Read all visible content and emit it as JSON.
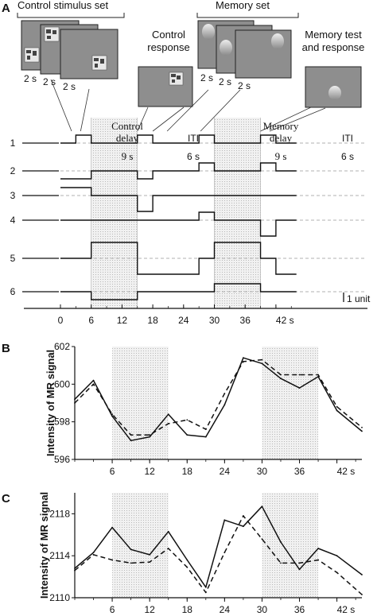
{
  "panel_labels": {
    "a": "A",
    "b": "B",
    "c": "C"
  },
  "panel_a": {
    "control_set_label": "Control stimulus set",
    "memory_set_label": "Memory set",
    "control_response_label": [
      "Control",
      "response"
    ],
    "memory_test_label": [
      "Memory test",
      "and response"
    ],
    "stim_durations": [
      "2 s",
      "2 s",
      "2 s"
    ],
    "mem_durations": [
      "2 s",
      "2 s",
      "2 s"
    ],
    "control_delay_label": [
      "Control",
      "delay"
    ],
    "memory_delay_label": [
      "Memory",
      "delay"
    ],
    "iti_label": "ITI",
    "delay_duration": "9 s",
    "iti_duration": "6 s",
    "unit_label": "1 unit",
    "rows": [
      {
        "name": "1",
        "levels": [
          [
            0,
            3,
            0
          ],
          [
            3,
            6,
            1
          ],
          [
            6,
            15,
            0
          ],
          [
            15,
            18,
            1
          ],
          [
            18,
            27,
            0
          ],
          [
            27,
            30,
            1
          ],
          [
            30,
            39,
            0
          ],
          [
            39,
            42,
            1
          ],
          [
            42,
            46,
            0
          ]
        ]
      },
      {
        "name": "2",
        "levels": [
          [
            0,
            6,
            -1
          ],
          [
            6,
            15,
            0
          ],
          [
            15,
            18,
            -1
          ],
          [
            18,
            27,
            0
          ],
          [
            27,
            30,
            1
          ],
          [
            30,
            39,
            0
          ],
          [
            39,
            42,
            1
          ],
          [
            42,
            46,
            0
          ]
        ]
      },
      {
        "name": "3",
        "levels": [
          [
            0,
            6,
            1
          ],
          [
            6,
            15,
            0
          ],
          [
            15,
            18,
            -2
          ],
          [
            18,
            46,
            0
          ]
        ]
      },
      {
        "name": "4",
        "levels": [
          [
            0,
            27,
            0
          ],
          [
            27,
            30,
            1
          ],
          [
            30,
            39,
            0
          ],
          [
            39,
            42,
            -2
          ],
          [
            42,
            46,
            0
          ]
        ]
      },
      {
        "name": "5",
        "levels": [
          [
            0,
            6,
            0
          ],
          [
            6,
            15,
            2
          ],
          [
            15,
            21,
            -2
          ],
          [
            21,
            27,
            -2
          ],
          [
            27,
            30,
            0
          ],
          [
            30,
            39,
            2
          ],
          [
            39,
            42,
            0
          ],
          [
            42,
            46,
            -2
          ]
        ]
      },
      {
        "name": "6",
        "levels": [
          [
            0,
            6,
            0
          ],
          [
            6,
            15,
            -1
          ],
          [
            15,
            30,
            0
          ],
          [
            30,
            39,
            1
          ],
          [
            39,
            46,
            0
          ]
        ]
      }
    ],
    "x_ticks": [
      "0",
      "6",
      "12",
      "18",
      "24",
      "30",
      "36",
      "42 s"
    ]
  },
  "chart_data": [
    {
      "type": "line",
      "ylabel": "Intensity of MR signal",
      "ylim": [
        596,
        602
      ],
      "xlim": [
        0,
        46
      ],
      "y_ticks": [
        "596",
        "598",
        "600",
        "602"
      ],
      "x_ticks": [
        "6",
        "12",
        "18",
        "24",
        "30",
        "36",
        "42 s"
      ],
      "shaded": [
        [
          6,
          15
        ],
        [
          30,
          39
        ]
      ],
      "series": [
        {
          "style": "solid",
          "x": [
            0,
            3,
            6,
            9,
            12,
            15,
            18,
            21,
            24,
            27,
            30,
            33,
            36,
            39,
            42,
            46
          ],
          "values": [
            599.2,
            600.2,
            598.3,
            597.0,
            597.2,
            598.4,
            597.3,
            597.2,
            598.9,
            601.4,
            601.1,
            600.3,
            599.8,
            600.4,
            598.6,
            597.5
          ]
        },
        {
          "style": "dashed",
          "x": [
            0,
            3,
            6,
            9,
            12,
            15,
            18,
            21,
            24,
            27,
            30,
            33,
            36,
            39,
            42,
            46
          ],
          "values": [
            599.0,
            600.0,
            598.4,
            597.3,
            597.3,
            597.9,
            598.1,
            597.6,
            599.5,
            601.2,
            601.3,
            600.5,
            600.5,
            600.5,
            598.8,
            597.7
          ]
        }
      ]
    },
    {
      "type": "line",
      "ylabel": "Intensity of MR signal",
      "ylim": [
        2110,
        2120
      ],
      "xlim": [
        0,
        46
      ],
      "y_ticks": [
        "2110",
        "2114",
        "2118"
      ],
      "x_ticks": [
        "6",
        "12",
        "18",
        "24",
        "30",
        "36",
        "42 s"
      ],
      "shaded": [
        [
          6,
          15
        ],
        [
          30,
          39
        ]
      ],
      "series": [
        {
          "style": "solid",
          "x": [
            0,
            3,
            6,
            9,
            12,
            15,
            18,
            21,
            24,
            27,
            30,
            33,
            36,
            39,
            42,
            46
          ],
          "values": [
            2112.8,
            2114.3,
            2116.7,
            2114.6,
            2114.1,
            2116.3,
            2113.6,
            2111.0,
            2117.4,
            2116.8,
            2118.7,
            2115.3,
            2112.7,
            2114.7,
            2114.0,
            2112.2
          ]
        },
        {
          "style": "dashed",
          "x": [
            0,
            3,
            6,
            9,
            12,
            15,
            18,
            21,
            24,
            27,
            30,
            33,
            36,
            39,
            42,
            46
          ],
          "values": [
            2112.6,
            2114.1,
            2113.6,
            2113.3,
            2113.4,
            2114.7,
            2112.9,
            2110.5,
            2114.3,
            2117.8,
            2115.6,
            2113.3,
            2113.3,
            2113.6,
            2112.4,
            2110.3
          ]
        }
      ]
    }
  ]
}
